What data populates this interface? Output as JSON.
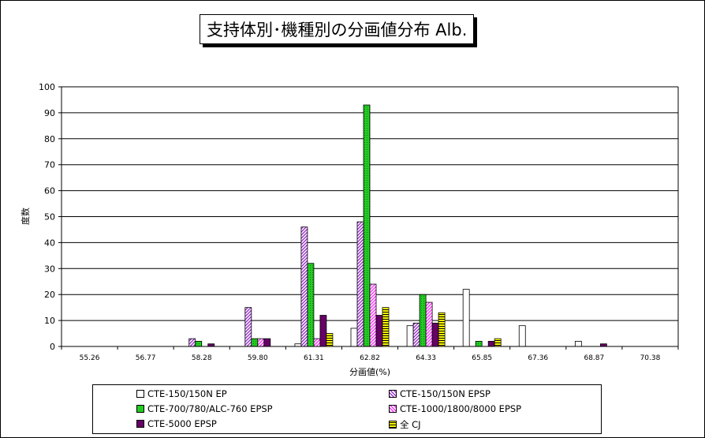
{
  "chart_data": {
    "type": "bar",
    "title": "支持体別･機種別の分画値分布 Alb.",
    "xlabel": "分画値(%)",
    "ylabel": "度数",
    "ylim": [
      0,
      100
    ],
    "yticks": [
      0,
      10,
      20,
      30,
      40,
      50,
      60,
      70,
      80,
      90,
      100
    ],
    "categories": [
      "55.26",
      "56.77",
      "58.28",
      "59.80",
      "61.31",
      "62.82",
      "64.33",
      "65.85",
      "67.36",
      "68.87",
      "70.38"
    ],
    "grid": true,
    "legend_position": "bottom",
    "series": [
      {
        "name": "CTE-150/150N EP",
        "values": [
          0,
          0,
          0,
          0,
          1,
          7,
          8,
          22,
          8,
          2,
          0
        ],
        "color": "#ffffff",
        "pattern": "solid"
      },
      {
        "name": "CTE-150/150N EPSP",
        "values": [
          0,
          0,
          3,
          15,
          46,
          48,
          9,
          0,
          0,
          0,
          0
        ],
        "color": "#9933cc",
        "pattern": "diagonal"
      },
      {
        "name": "CTE-700/780/ALC-760 EPSP",
        "values": [
          0,
          0,
          2,
          3,
          32,
          93,
          20,
          2,
          0,
          0,
          0
        ],
        "color": "#22cc22",
        "pattern": "dots"
      },
      {
        "name": "CTE-1000/1800/8000 EPSP",
        "values": [
          0,
          0,
          0,
          3,
          3,
          24,
          17,
          0,
          0,
          0,
          0
        ],
        "color": "#ff33ff",
        "pattern": "diagonal-light"
      },
      {
        "name": "CTE-5000 EPSP",
        "values": [
          0,
          0,
          1,
          3,
          12,
          12,
          9,
          2,
          0,
          1,
          0
        ],
        "color": "#660066",
        "pattern": "solid"
      },
      {
        "name": "全 CJ",
        "values": [
          0,
          0,
          0,
          0,
          5,
          15,
          13,
          3,
          0,
          0,
          0
        ],
        "color": "#ffff00",
        "pattern": "horizontal"
      }
    ]
  }
}
